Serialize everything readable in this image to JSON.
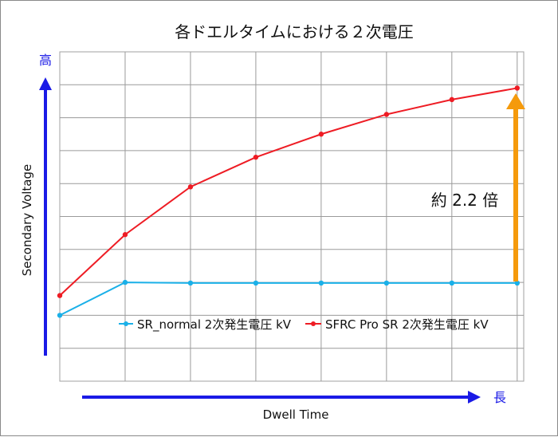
{
  "chart_data": {
    "type": "line",
    "title": "各ドエルタイムにおける２次電圧",
    "xlabel": "Dwell Time",
    "ylabel": "Secondary Voltage",
    "x_direction_label": "長",
    "y_direction_label": "高",
    "x": [
      1,
      2,
      3,
      4,
      5,
      6,
      7,
      8
    ],
    "ylim": [
      0,
      10
    ],
    "grid": true,
    "legend_position": "inside-lower",
    "series": [
      {
        "name": "SR_normal 2次発生電圧 kV",
        "color": "#1ab0e8",
        "values": [
          2.0,
          3.0,
          2.98,
          2.98,
          2.98,
          2.98,
          2.98,
          2.98
        ]
      },
      {
        "name": "SFRC Pro SR 2次発生電圧 kV",
        "color": "#ee1c24",
        "values": [
          2.6,
          4.45,
          5.9,
          6.8,
          7.5,
          8.1,
          8.55,
          8.9
        ]
      }
    ],
    "annotation": {
      "text": "約 2.2 倍",
      "arrow_color": "#f59a0c"
    },
    "axis_arrow_color": "#1a1ae6"
  }
}
